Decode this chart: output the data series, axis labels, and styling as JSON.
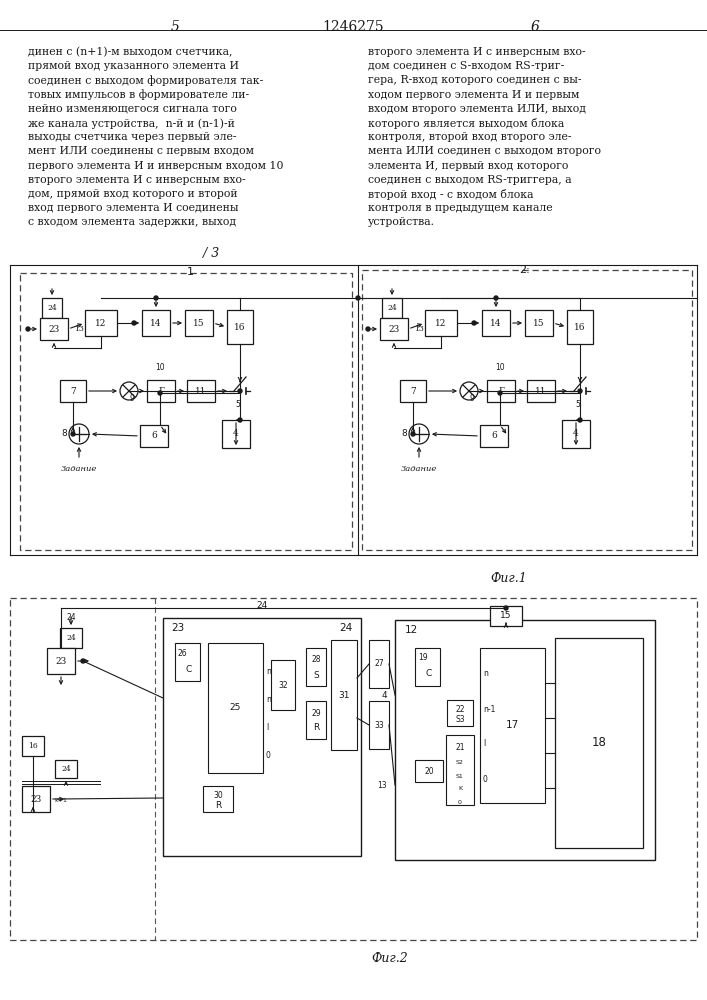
{
  "page_numbers_left": "5",
  "page_numbers_center": "1246275",
  "page_numbers_right": "6",
  "text_left": [
    "динен с (n+1)-м выходом счетчика,",
    "прямой вход указанного элемента И",
    "соединен с выходом формирователя так-",
    "товых импульсов в формирователе ли-",
    "нейно изменяющегося сигнала того",
    "же канала устройства,  n-й и (n-1)-й",
    "выходы счетчика через первый эле-",
    "мент ИЛИ соединены с первым входом",
    "первого элемента И и инверсным входом 10",
    "второго элемента И с инверсным вхо-",
    "дом, прямой вход которого и второй",
    "вход первого элемента И соединены",
    "с входом элемента задержки, выход"
  ],
  "text_right": [
    "второго элемента И с инверсным вхо-",
    "дом соединен с S-входом RS-триг-",
    "гера, R-вход которого соединен с вы-",
    "ходом первого элемента И и первым",
    "входом второго элемента ИЛИ, выход",
    "которого является выходом блока",
    "контроля, второй вход второго эле-",
    "мента ИЛИ соединен с выходом второго",
    "элемента И, первый вход которого",
    "соединен с выходом RS-триггера, а",
    "второй вход - с входом блока",
    "контроля в предыдущем канале",
    "устройства."
  ],
  "fig1_label": "Фиг.1",
  "fig2_label": "Фиг.2",
  "background_color": "#ffffff",
  "line_color": "#1a1a1a"
}
